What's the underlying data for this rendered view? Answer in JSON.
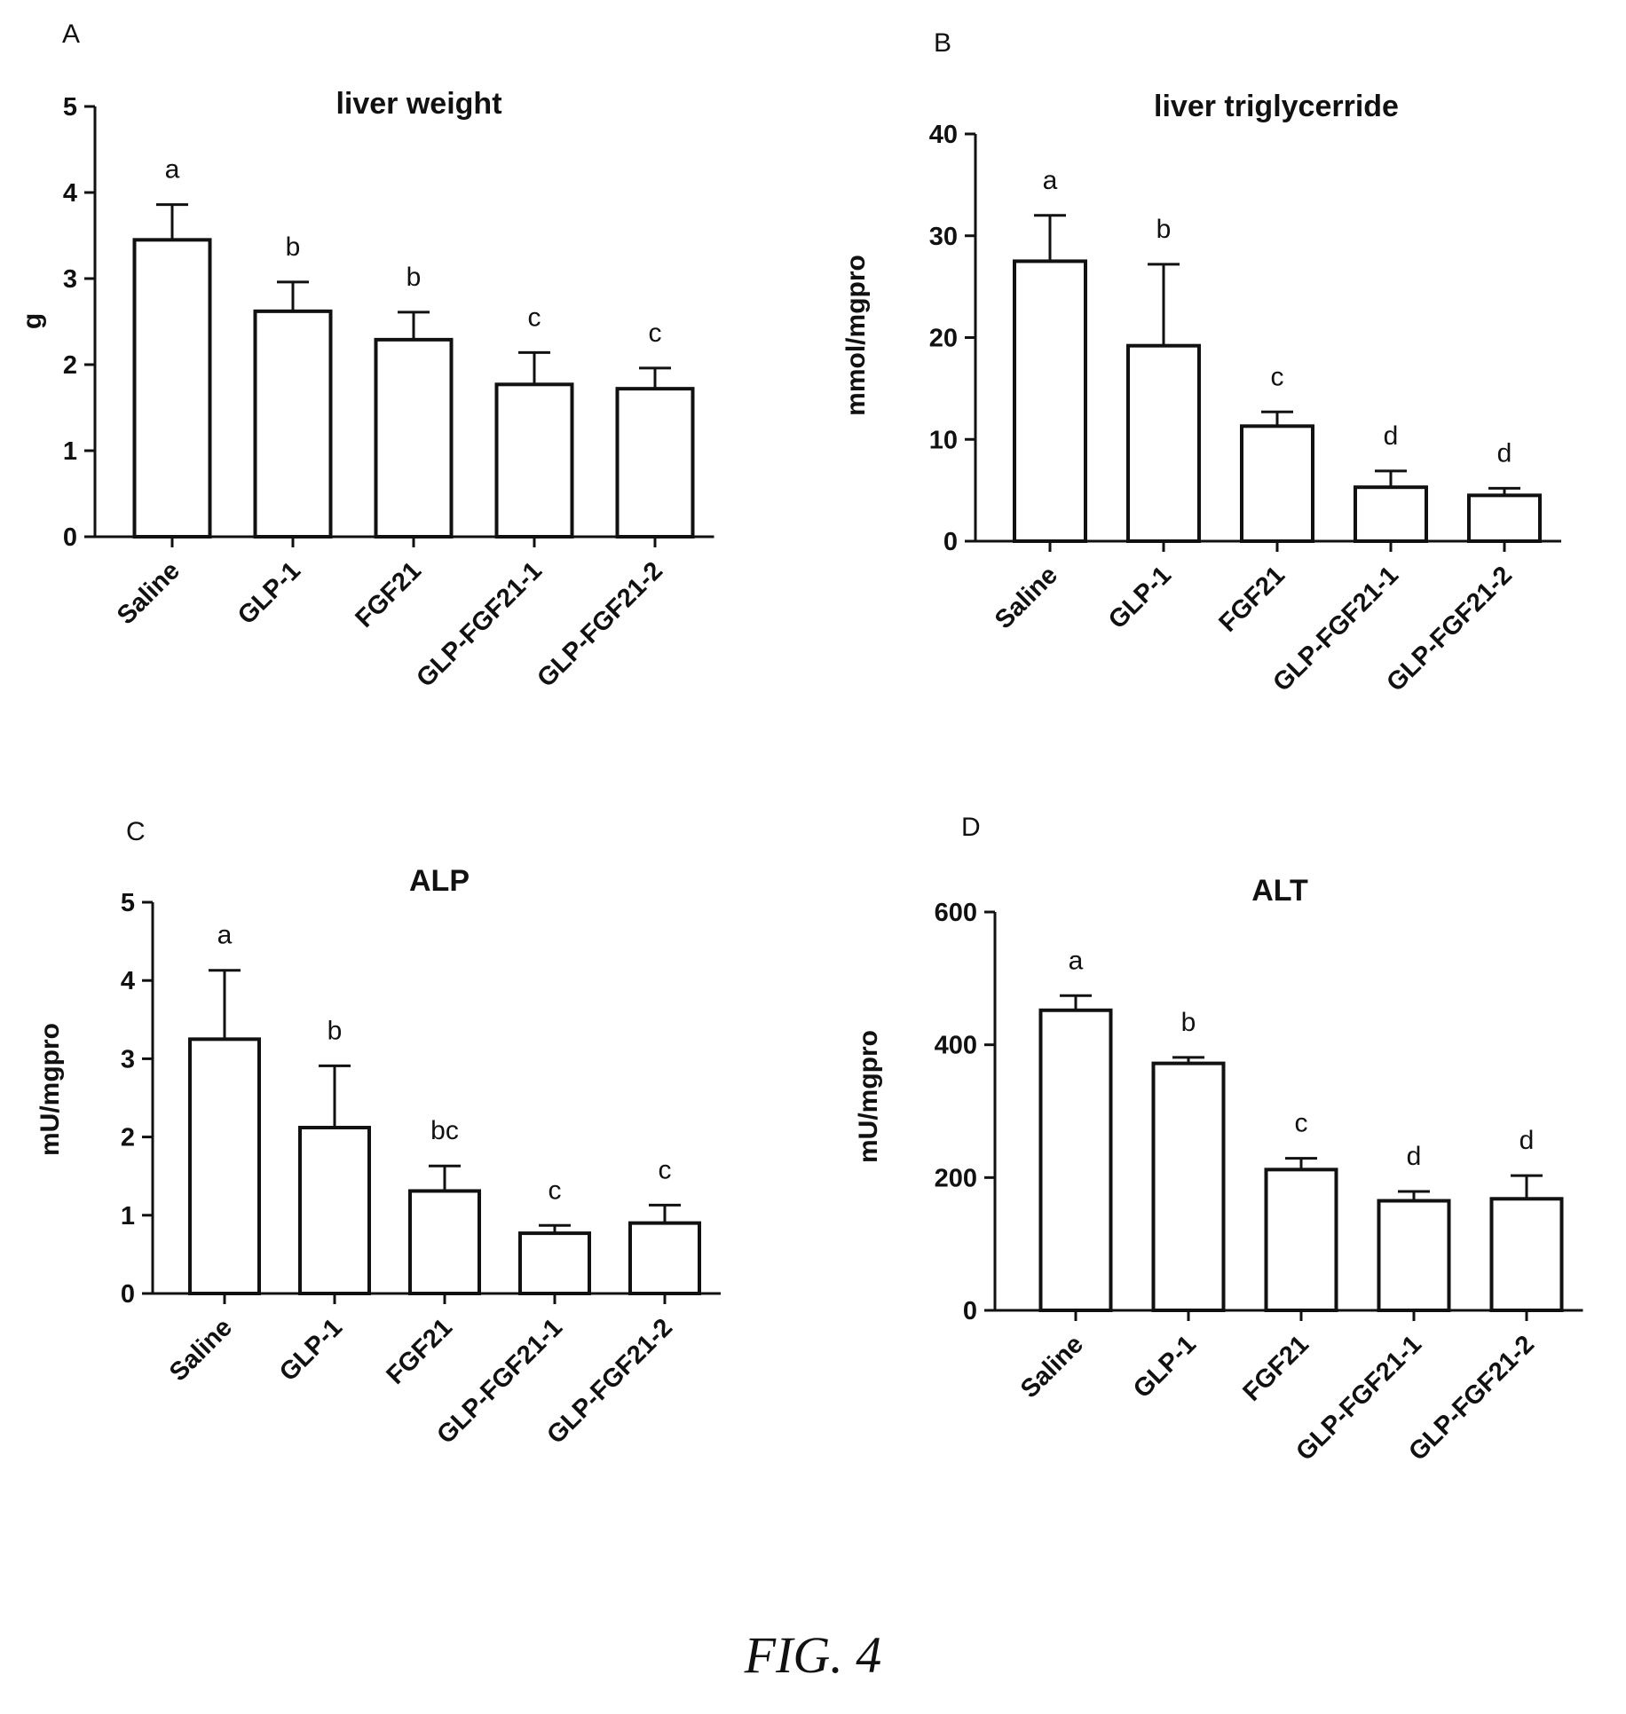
{
  "figure_caption": "FIG. 4",
  "panels": [
    "A",
    "B",
    "C",
    "D"
  ],
  "chart_data": [
    {
      "type": "bar",
      "panel": "A",
      "title": "liver weight",
      "ylabel": "g",
      "ylim": [
        0,
        5
      ],
      "yticks": [
        "0",
        "1",
        "2",
        "3",
        "4",
        "5"
      ],
      "categories": [
        "Saline",
        "GLP-1",
        "FGF21",
        "GLP-FGF21-1",
        "GLP-FGF21-2"
      ],
      "values": [
        3.45,
        2.62,
        2.29,
        1.77,
        1.72
      ],
      "errors": [
        0.41,
        0.34,
        0.32,
        0.37,
        0.24
      ],
      "letters": [
        "a",
        "b",
        "b",
        "c",
        "c"
      ],
      "grid": false
    },
    {
      "type": "bar",
      "panel": "B",
      "title": "liver triglycerride",
      "ylabel": "mmol/mgpro",
      "ylim": [
        0,
        40
      ],
      "yticks": [
        "0",
        "10",
        "20",
        "30",
        "40"
      ],
      "categories": [
        "Saline",
        "GLP-1",
        "FGF21",
        "GLP-FGF21-1",
        "GLP-FGF21-2"
      ],
      "values": [
        27.5,
        19.2,
        11.3,
        5.3,
        4.5
      ],
      "errors": [
        4.5,
        8.0,
        1.4,
        1.6,
        0.7
      ],
      "letters": [
        "a",
        "b",
        "c",
        "d",
        "d"
      ],
      "grid": false
    },
    {
      "type": "bar",
      "panel": "C",
      "title": "ALP",
      "ylabel": "mU/mgpro",
      "ylim": [
        0,
        5
      ],
      "yticks": [
        "0",
        "1",
        "2",
        "3",
        "4",
        "5"
      ],
      "categories": [
        "Saline",
        "GLP-1",
        "FGF21",
        "GLP-FGF21-1",
        "GLP-FGF21-2"
      ],
      "values": [
        3.25,
        2.12,
        1.31,
        0.77,
        0.9
      ],
      "errors": [
        0.88,
        0.79,
        0.32,
        0.1,
        0.23
      ],
      "letters": [
        "a",
        "b",
        "bc",
        "c",
        "c"
      ],
      "grid": false
    },
    {
      "type": "bar",
      "panel": "D",
      "title": "ALT",
      "ylabel": "mU/mgpro",
      "ylim": [
        0,
        600
      ],
      "yticks": [
        "0",
        "200",
        "400",
        "600"
      ],
      "categories": [
        "Saline",
        "GLP-1",
        "FGF21",
        "GLP-FGF21-1",
        "GLP-FGF21-2"
      ],
      "values": [
        452,
        372,
        212,
        165,
        168
      ],
      "errors": [
        22,
        9,
        17,
        14,
        35
      ],
      "letters": [
        "a",
        "b",
        "c",
        "d",
        "d"
      ],
      "grid": false
    }
  ]
}
